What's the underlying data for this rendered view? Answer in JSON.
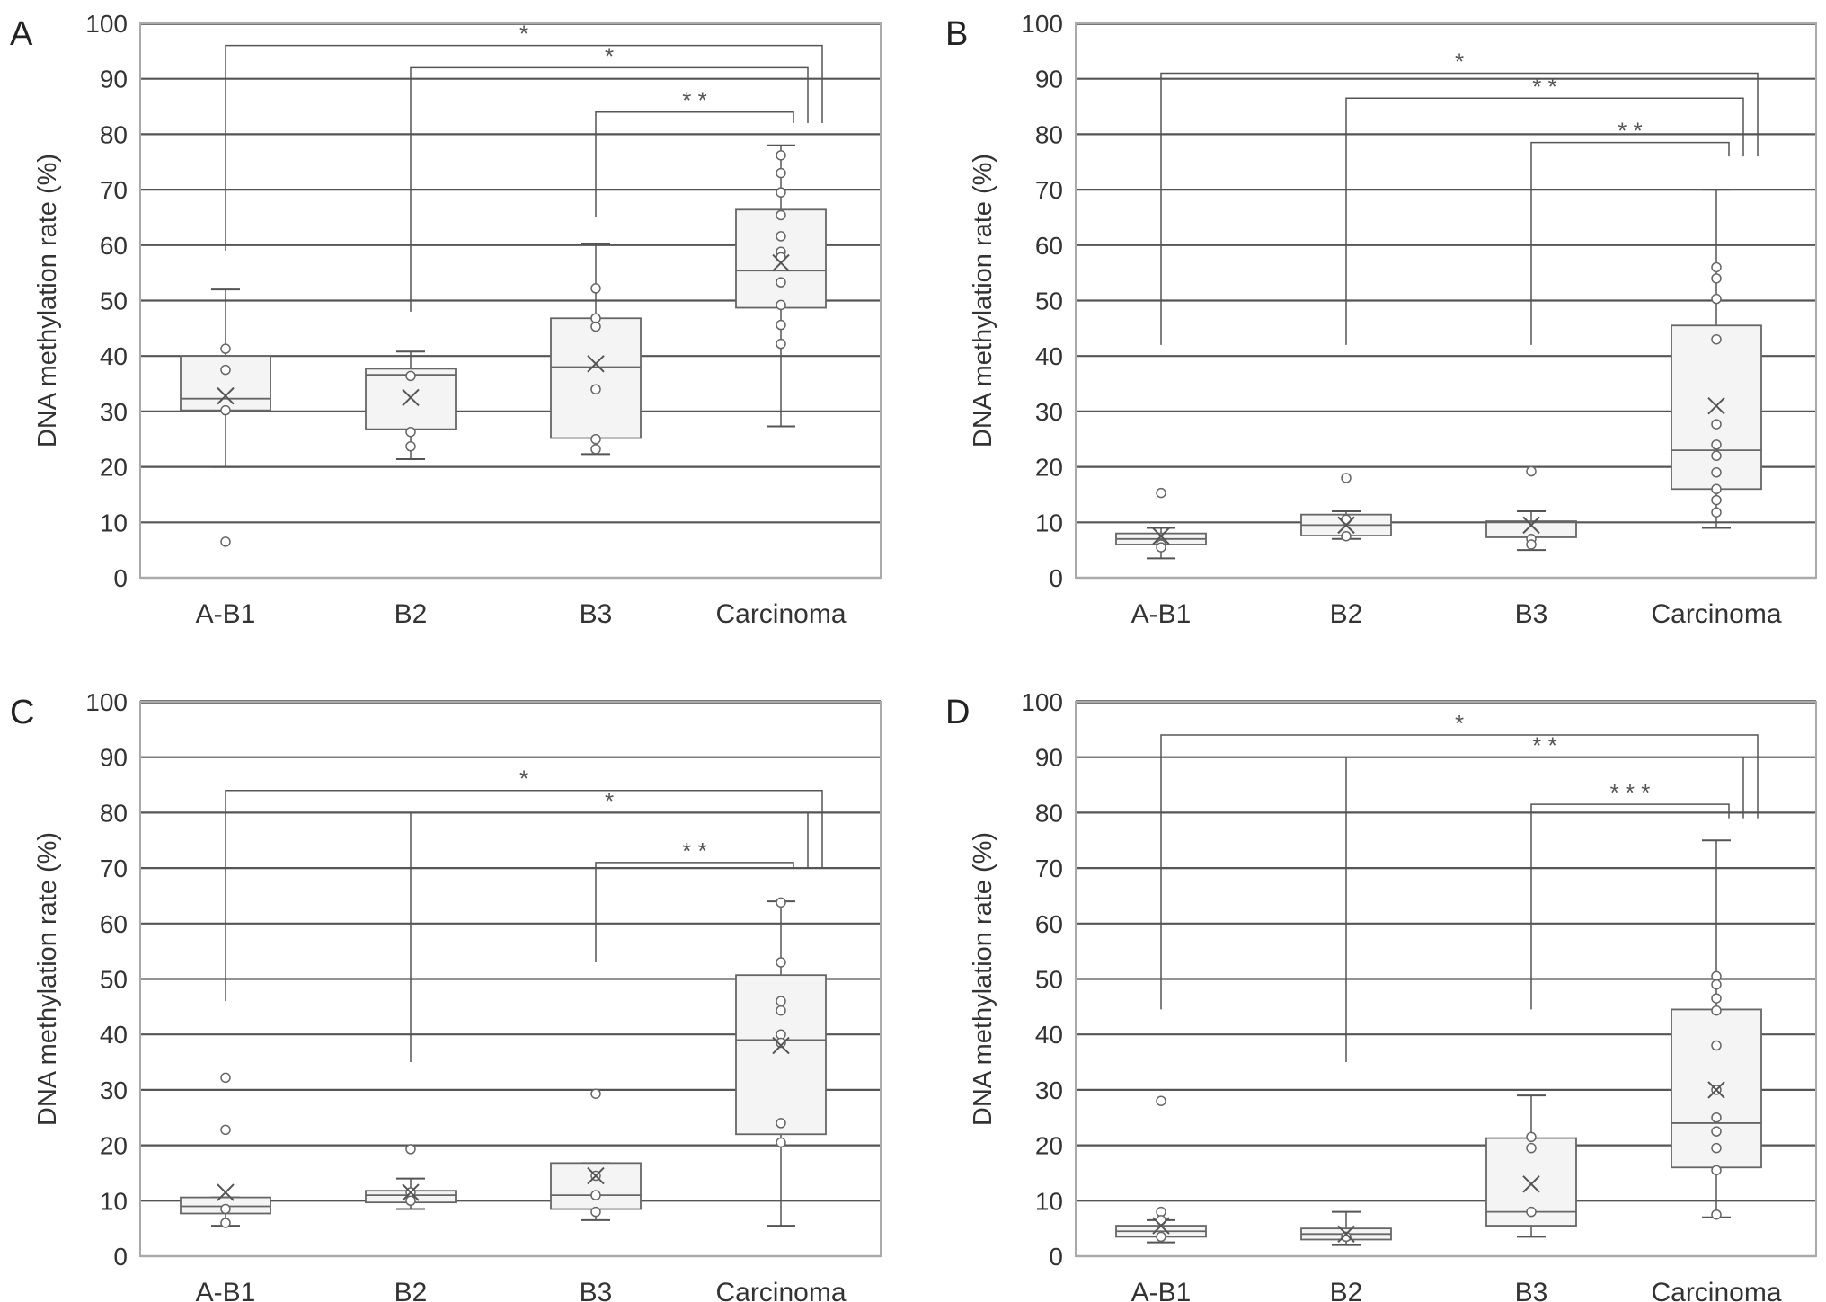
{
  "chart_data": [
    {
      "type": "box",
      "panel_label": "A",
      "ylabel": "DNA methylation rate (%)",
      "ylim": [
        0,
        100
      ],
      "yticks": [
        0,
        10,
        20,
        30,
        40,
        50,
        60,
        70,
        80,
        90,
        100
      ],
      "grid": true,
      "categories": [
        "A-B1",
        "B2",
        "B3",
        "Carcinoma"
      ],
      "boxes": [
        {
          "min": 20,
          "q1": 30.2,
          "median": 32.3,
          "q3": 40,
          "max": 52,
          "mean": 32.8,
          "points": [
            41.3,
            37.5,
            30.2,
            6.5
          ]
        },
        {
          "min": 21.4,
          "q1": 26.8,
          "median": 36.6,
          "q3": 37.7,
          "max": 40.8,
          "mean": 32.5,
          "points": [
            36.4,
            26.3,
            23.7
          ]
        },
        {
          "min": 22.3,
          "q1": 25.2,
          "median": 38,
          "q3": 46.8,
          "max": 60.3,
          "mean": 38.6,
          "points": [
            52.2,
            46.8,
            45.3,
            34,
            25,
            23.2
          ]
        },
        {
          "min": 27.3,
          "q1": 48.7,
          "median": 55.4,
          "q3": 66.4,
          "max": 78,
          "mean": 56.8,
          "points": [
            76.2,
            73,
            69.5,
            65.4,
            61.6,
            58.8,
            57.8,
            53.3,
            49.2,
            45.6,
            42.2
          ]
        }
      ],
      "significance": [
        {
          "from": 0,
          "to": 3,
          "top": 96,
          "left_end": 59,
          "right_end": 82,
          "label": "*"
        },
        {
          "from": 1,
          "to": 3,
          "top": 92,
          "left_end": 48,
          "right_end": 82,
          "label": "*"
        },
        {
          "from": 2,
          "to": 3,
          "top": 84,
          "left_end": 65,
          "right_end": 82,
          "label": "* *"
        }
      ]
    },
    {
      "type": "box",
      "panel_label": "B",
      "ylabel": "DNA methylation rate (%)",
      "ylim": [
        0,
        100
      ],
      "yticks": [
        0,
        10,
        20,
        30,
        40,
        50,
        60,
        70,
        80,
        90,
        100
      ],
      "grid": true,
      "categories": [
        "A-B1",
        "B2",
        "B3",
        "Carcinoma"
      ],
      "boxes": [
        {
          "min": 3.5,
          "q1": 6,
          "median": 7,
          "q3": 8,
          "max": 9,
          "mean": 7.5,
          "points": [
            15.3,
            6,
            5.5
          ]
        },
        {
          "min": 7,
          "q1": 7.6,
          "median": 9.5,
          "q3": 11.4,
          "max": 12,
          "mean": 9.5,
          "points": [
            18,
            10.5,
            7.5
          ]
        },
        {
          "min": 5,
          "q1": 7.3,
          "median": 10,
          "q3": 10.2,
          "max": 12,
          "mean": 9.5,
          "points": [
            19.2,
            7,
            6
          ]
        },
        {
          "min": 9,
          "q1": 16,
          "median": 23,
          "q3": 45.5,
          "max": 70,
          "mean": 31,
          "points": [
            56,
            54,
            50.3,
            43,
            27.7,
            24,
            22,
            19,
            16,
            14,
            11.8
          ]
        }
      ],
      "significance": [
        {
          "from": 0,
          "to": 3,
          "top": 91,
          "left_end": 42,
          "right_end": 76,
          "label": "*"
        },
        {
          "from": 1,
          "to": 3,
          "top": 86.5,
          "left_end": 42,
          "right_end": 76,
          "label": "* *"
        },
        {
          "from": 2,
          "to": 3,
          "top": 78.5,
          "left_end": 42,
          "right_end": 76,
          "label": "* *"
        }
      ]
    },
    {
      "type": "box",
      "panel_label": "C",
      "ylabel": "DNA methylation rate (%)",
      "ylim": [
        0,
        100
      ],
      "yticks": [
        0,
        10,
        20,
        30,
        40,
        50,
        60,
        70,
        80,
        90,
        100
      ],
      "grid": true,
      "categories": [
        "A-B1",
        "B2",
        "B3",
        "Carcinoma"
      ],
      "boxes": [
        {
          "min": 5.5,
          "q1": 7.7,
          "median": 9,
          "q3": 10.6,
          "max": 10.6,
          "mean": 11.5,
          "points": [
            32.2,
            22.8,
            8.5,
            6
          ]
        },
        {
          "min": 8.5,
          "q1": 9.7,
          "median": 11,
          "q3": 11.8,
          "max": 14,
          "mean": 11.5,
          "points": [
            19.3,
            11.5,
            10
          ]
        },
        {
          "min": 6.5,
          "q1": 8.5,
          "median": 11,
          "q3": 16.8,
          "max": 16.8,
          "mean": 14.5,
          "points": [
            29.3,
            14.5,
            11,
            8
          ]
        },
        {
          "min": 5.5,
          "q1": 22,
          "median": 39,
          "q3": 50.7,
          "max": 64,
          "mean": 38,
          "points": [
            63.8,
            53,
            46,
            44.3,
            40,
            38.5,
            24,
            20.5
          ]
        }
      ],
      "significance": [
        {
          "from": 0,
          "to": 3,
          "top": 84,
          "left_end": 46,
          "right_end": 70,
          "label": "*"
        },
        {
          "from": 1,
          "to": 3,
          "top": 80,
          "left_end": 35,
          "right_end": 70,
          "label": "*"
        },
        {
          "from": 2,
          "to": 3,
          "top": 71,
          "left_end": 53,
          "right_end": 70,
          "label": "* *"
        }
      ]
    },
    {
      "type": "box",
      "panel_label": "D",
      "ylabel": "DNA methylation rate (%)",
      "ylim": [
        0,
        100
      ],
      "yticks": [
        0,
        10,
        20,
        30,
        40,
        50,
        60,
        70,
        80,
        90,
        100
      ],
      "grid": true,
      "categories": [
        "A-B1",
        "B2",
        "B3",
        "Carcinoma"
      ],
      "boxes": [
        {
          "min": 2.5,
          "q1": 3.5,
          "median": 4.5,
          "q3": 5.5,
          "max": 6.5,
          "mean": 5.5,
          "points": [
            28,
            8,
            6.5,
            3.5
          ]
        },
        {
          "min": 2,
          "q1": 3,
          "median": 4,
          "q3": 5,
          "max": 8,
          "mean": 4,
          "points": [
            3.5
          ]
        },
        {
          "min": 3.5,
          "q1": 5.5,
          "median": 8,
          "q3": 21.3,
          "max": 29,
          "mean": 13,
          "points": [
            21.5,
            19.5,
            8
          ]
        },
        {
          "min": 7,
          "q1": 16,
          "median": 24,
          "q3": 44.5,
          "max": 75,
          "mean": 30,
          "points": [
            50.5,
            49,
            46.5,
            44.3,
            38,
            30,
            25,
            22.5,
            19.5,
            15.5,
            7.5
          ]
        }
      ],
      "significance": [
        {
          "from": 0,
          "to": 3,
          "top": 94,
          "left_end": 44.5,
          "right_end": 79,
          "label": "*"
        },
        {
          "from": 1,
          "to": 3,
          "top": 90,
          "left_end": 35,
          "right_end": 79,
          "label": "* *"
        },
        {
          "from": 2,
          "to": 3,
          "top": 81.5,
          "left_end": 44.5,
          "right_end": 79,
          "label": "* * *"
        }
      ]
    }
  ]
}
